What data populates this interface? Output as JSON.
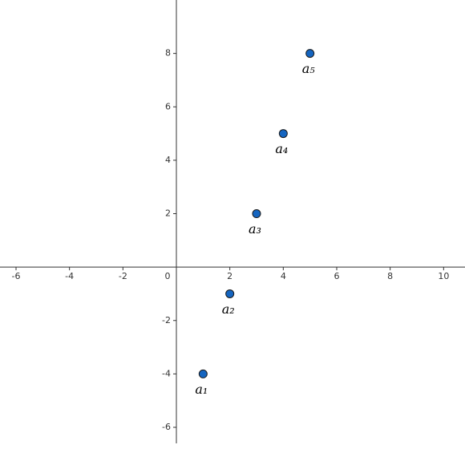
{
  "chart_data": {
    "type": "scatter",
    "x": [
      1,
      2,
      3,
      4,
      5
    ],
    "values": [
      -4,
      -1,
      2,
      5,
      8
    ],
    "point_labels": [
      "a₁",
      "a₂",
      "a₃",
      "a₄",
      "a₅"
    ],
    "color": "#1565c0",
    "xlim": [
      -6.6,
      10.8
    ],
    "ylim": [
      -6.6,
      10
    ],
    "xticks": [
      -6,
      -4,
      -2,
      0,
      2,
      4,
      6,
      8,
      10
    ],
    "yticks": [
      -6,
      -4,
      -2,
      2,
      4,
      6,
      8
    ],
    "grid": false
  }
}
